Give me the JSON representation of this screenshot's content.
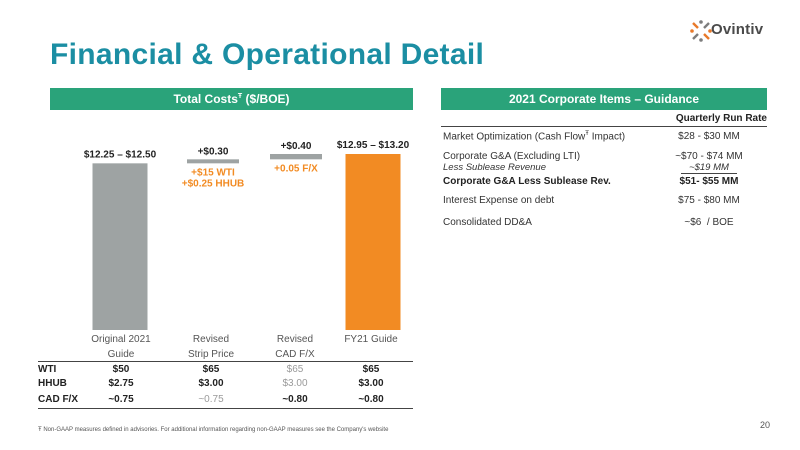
{
  "logo": {
    "text": "Ovintiv",
    "icon": "ovintiv-star-icon",
    "colors": [
      "#e8792a",
      "#7d7d7d"
    ]
  },
  "page": {
    "title": "Financial & Operational Detail",
    "page_number": "20"
  },
  "left": {
    "band_title": "Total Costs",
    "band_mark": "Ŧ",
    "band_unit": "($/BOE)"
  },
  "chart_data": {
    "type": "bar",
    "ylabel": "$/BOE",
    "ylim": [
      0,
      13.5
    ],
    "bars": [
      {
        "category": "Original 2021\nGuide",
        "low": 12.25,
        "high": 12.5,
        "base": 0,
        "kind": "total",
        "label": "$12.25 – $12.50",
        "color": "#9ea3a3",
        "notes": []
      },
      {
        "category": "Revised\nStrip Price",
        "delta": 0.3,
        "kind": "step",
        "label": "+$0.30",
        "color": "#9ea3a3",
        "notes": [
          "+$15 WTI",
          "+$0.25 HHUB"
        ]
      },
      {
        "category": "Revised\nCAD F/X",
        "delta": 0.4,
        "kind": "step",
        "label": "+$0.40",
        "color": "#9ea3a3",
        "notes": [
          "+0.05 F/X"
        ]
      },
      {
        "category": "FY21 Guide",
        "low": 12.95,
        "high": 13.2,
        "base": 0,
        "kind": "total",
        "label": "$12.95 – $13.20",
        "color": "#f28b23",
        "notes": []
      }
    ],
    "note_color": "#f28b23"
  },
  "params": {
    "rows": [
      {
        "label": "WTI",
        "values": [
          "$50",
          "$65",
          "$65",
          "$65"
        ],
        "light": [
          false,
          false,
          true,
          false
        ]
      },
      {
        "label": "HHUB",
        "values": [
          "$2.75",
          "$3.00",
          "$3.00",
          "$3.00"
        ],
        "light": [
          false,
          false,
          true,
          false
        ]
      },
      {
        "label": "CAD F/X",
        "values": [
          "~0.75",
          "~0.75",
          "~0.80",
          "~0.80"
        ],
        "light": [
          false,
          true,
          false,
          false
        ]
      }
    ]
  },
  "right": {
    "band_title": "2021 Corporate Items – Guidance",
    "col_header": "Quarterly Run Rate",
    "rows": [
      {
        "label": "Market Optimization (Cash Flow",
        "mark": "Ŧ",
        "label_end": " Impact)",
        "value": "$28 - $30 MM"
      },
      {
        "label": "Corporate G&A (Excluding LTI)",
        "value": "~$70 - $74 MM"
      },
      {
        "label": "Less Sublease Revenue",
        "value": "~$19 MM"
      },
      {
        "label": "Corporate G&A Less Sublease Rev.",
        "value": "$51- $55 MM"
      },
      {
        "label": "Interest Expense on debt",
        "value": "$75 - $80 MM"
      },
      {
        "label": "Consolidated DD&A",
        "value": "~$6  / BOE"
      }
    ]
  },
  "footnote": "Ŧ Non-GAAP measures defined in advisories. For additional information regarding non-GAAP measures see the Company's website"
}
